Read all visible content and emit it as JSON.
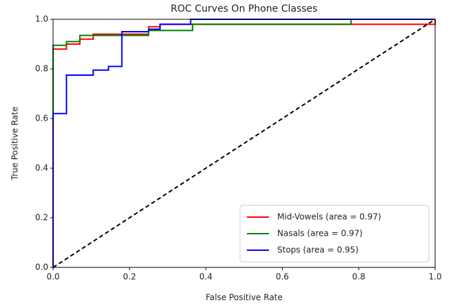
{
  "chart_data": {
    "type": "line",
    "title": "ROC Curves On Phone Classes",
    "xlabel": "False Positive Rate",
    "ylabel": "True Positive Rate",
    "xlim": [
      0,
      1
    ],
    "ylim": [
      0,
      1
    ],
    "xticks": [
      {
        "value": 0,
        "label": "0.0"
      },
      0.2,
      0.4,
      0.6,
      0.8,
      {
        "value": 1,
        "label": "1.0"
      }
    ],
    "yticks": [
      {
        "value": 0,
        "label": "0.0"
      },
      0.2,
      0.4,
      0.6,
      0.8,
      {
        "value": 1,
        "label": "1.0"
      }
    ],
    "grid": false,
    "legend": "lower right",
    "series": [
      {
        "name": "Mid-Vowels (area = 0.97)",
        "color": "#ff0000",
        "x": [
          0,
          0,
          0.035,
          0.035,
          0.07,
          0.07,
          0.105,
          0.105,
          0.25,
          0.25,
          0.28,
          0.28,
          1,
          1
        ],
        "values": [
          0,
          0.88,
          0.88,
          0.9,
          0.9,
          0.92,
          0.92,
          0.94,
          0.94,
          0.97,
          0.97,
          0.98,
          0.98,
          1
        ]
      },
      {
        "name": "Nasals (area = 0.97)",
        "color": "#008000",
        "x": [
          0,
          0,
          0.035,
          0.035,
          0.07,
          0.07,
          0.25,
          0.25,
          0.365,
          0.365,
          0.78,
          0.78,
          1
        ],
        "values": [
          0,
          0.895,
          0.895,
          0.91,
          0.91,
          0.935,
          0.935,
          0.955,
          0.955,
          0.98,
          0.98,
          1,
          1
        ]
      },
      {
        "name": "Stops (area = 0.95)",
        "color": "#0000ff",
        "x": [
          0,
          0,
          0.035,
          0.035,
          0.105,
          0.105,
          0.145,
          0.145,
          0.18,
          0.18,
          0.25,
          0.25,
          0.28,
          0.28,
          0.36,
          0.36,
          1
        ],
        "values": [
          0,
          0.62,
          0.62,
          0.775,
          0.775,
          0.795,
          0.795,
          0.81,
          0.81,
          0.95,
          0.95,
          0.96,
          0.96,
          0.98,
          0.98,
          1,
          1
        ]
      },
      {
        "color": "#000000",
        "dashed": true,
        "x": [
          0,
          1
        ],
        "values": [
          0,
          1
        ]
      }
    ]
  }
}
